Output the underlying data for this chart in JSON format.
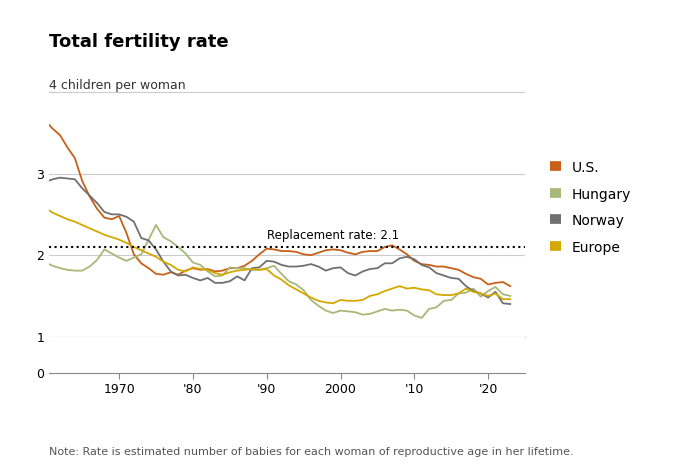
{
  "title": "Total fertility rate",
  "ylabel": "4 children per woman",
  "note": "Note: Rate is estimated number of babies for each woman of reproductive age in her lifetime.",
  "replacement_rate": 2.1,
  "replacement_label": "Replacement rate: 2.1",
  "plot_ylim": [
    1.0,
    4.1
  ],
  "plot_yticks": [
    1,
    2,
    3,
    4
  ],
  "plot_ytick_labels": [
    "1",
    "2",
    "3",
    "4 children per woman"
  ],
  "xlim": [
    1960.5,
    2025
  ],
  "xtick_years": [
    1970,
    1980,
    1990,
    2000,
    2010,
    2020
  ],
  "xtick_labels": [
    "1970",
    "'80",
    "'90",
    "2000",
    "'10",
    "'20"
  ],
  "series": {
    "US": {
      "color": "#c8601a",
      "label": "U.S.",
      "years": [
        1960,
        1961,
        1962,
        1963,
        1964,
        1965,
        1966,
        1967,
        1968,
        1969,
        1970,
        1971,
        1972,
        1973,
        1974,
        1975,
        1976,
        1977,
        1978,
        1979,
        1980,
        1981,
        1982,
        1983,
        1984,
        1985,
        1986,
        1987,
        1988,
        1989,
        1990,
        1991,
        1992,
        1993,
        1994,
        1995,
        1996,
        1997,
        1998,
        1999,
        2000,
        2001,
        2002,
        2003,
        2004,
        2005,
        2006,
        2007,
        2008,
        2009,
        2010,
        2011,
        2012,
        2013,
        2014,
        2015,
        2016,
        2017,
        2018,
        2019,
        2020,
        2021,
        2022,
        2023
      ],
      "values": [
        3.65,
        3.55,
        3.47,
        3.32,
        3.19,
        2.91,
        2.72,
        2.57,
        2.46,
        2.44,
        2.48,
        2.27,
        2.01,
        1.9,
        1.84,
        1.77,
        1.76,
        1.79,
        1.76,
        1.81,
        1.84,
        1.82,
        1.83,
        1.8,
        1.81,
        1.84,
        1.84,
        1.87,
        1.93,
        2.01,
        2.08,
        2.07,
        2.05,
        2.05,
        2.04,
        2.01,
        2.0,
        2.03,
        2.06,
        2.07,
        2.06,
        2.03,
        2.01,
        2.04,
        2.05,
        2.05,
        2.1,
        2.12,
        2.07,
        2.01,
        1.93,
        1.89,
        1.88,
        1.86,
        1.86,
        1.84,
        1.82,
        1.77,
        1.73,
        1.71,
        1.64,
        1.66,
        1.67,
        1.62
      ]
    },
    "Hungary": {
      "color": "#a8b878",
      "label": "Hungary",
      "years": [
        1960,
        1961,
        1962,
        1963,
        1964,
        1965,
        1966,
        1967,
        1968,
        1969,
        1970,
        1971,
        1972,
        1973,
        1974,
        1975,
        1976,
        1977,
        1978,
        1979,
        1980,
        1981,
        1982,
        1983,
        1984,
        1985,
        1986,
        1987,
        1988,
        1989,
        1990,
        1991,
        1992,
        1993,
        1994,
        1995,
        1996,
        1997,
        1998,
        1999,
        2000,
        2001,
        2002,
        2003,
        2004,
        2005,
        2006,
        2007,
        2008,
        2009,
        2010,
        2011,
        2012,
        2013,
        2014,
        2015,
        2016,
        2017,
        2018,
        2019,
        2020,
        2021,
        2022,
        2023
      ],
      "values": [
        1.91,
        1.87,
        1.84,
        1.82,
        1.81,
        1.81,
        1.86,
        1.94,
        2.07,
        2.02,
        1.97,
        1.93,
        1.97,
        2.01,
        2.19,
        2.37,
        2.22,
        2.17,
        2.1,
        2.02,
        1.91,
        1.88,
        1.8,
        1.74,
        1.75,
        1.85,
        1.84,
        1.84,
        1.82,
        1.82,
        1.84,
        1.87,
        1.77,
        1.68,
        1.64,
        1.57,
        1.45,
        1.38,
        1.32,
        1.29,
        1.32,
        1.31,
        1.3,
        1.27,
        1.28,
        1.31,
        1.34,
        1.32,
        1.33,
        1.32,
        1.26,
        1.23,
        1.34,
        1.36,
        1.44,
        1.45,
        1.53,
        1.54,
        1.59,
        1.49,
        1.56,
        1.61,
        1.52,
        1.5
      ]
    },
    "Norway": {
      "color": "#707070",
      "label": "Norway",
      "years": [
        1960,
        1961,
        1962,
        1963,
        1964,
        1965,
        1966,
        1967,
        1968,
        1969,
        1970,
        1971,
        1972,
        1973,
        1974,
        1975,
        1976,
        1977,
        1978,
        1979,
        1980,
        1981,
        1982,
        1983,
        1984,
        1985,
        1986,
        1987,
        1988,
        1989,
        1990,
        1991,
        1992,
        1993,
        1994,
        1995,
        1996,
        1997,
        1998,
        1999,
        2000,
        2001,
        2002,
        2003,
        2004,
        2005,
        2006,
        2007,
        2008,
        2009,
        2010,
        2011,
        2012,
        2013,
        2014,
        2015,
        2016,
        2017,
        2018,
        2019,
        2020,
        2021,
        2022,
        2023
      ],
      "values": [
        2.9,
        2.93,
        2.95,
        2.94,
        2.93,
        2.82,
        2.73,
        2.64,
        2.53,
        2.5,
        2.5,
        2.47,
        2.41,
        2.21,
        2.18,
        2.07,
        1.92,
        1.8,
        1.75,
        1.76,
        1.72,
        1.69,
        1.72,
        1.66,
        1.66,
        1.68,
        1.74,
        1.69,
        1.84,
        1.85,
        1.93,
        1.92,
        1.88,
        1.86,
        1.86,
        1.87,
        1.89,
        1.86,
        1.81,
        1.84,
        1.85,
        1.78,
        1.75,
        1.8,
        1.83,
        1.84,
        1.9,
        1.9,
        1.96,
        1.98,
        1.95,
        1.88,
        1.85,
        1.78,
        1.75,
        1.72,
        1.71,
        1.62,
        1.56,
        1.53,
        1.48,
        1.55,
        1.41,
        1.4
      ]
    },
    "Europe": {
      "color": "#d4a800",
      "label": "Europe",
      "years": [
        1960,
        1961,
        1962,
        1963,
        1964,
        1965,
        1966,
        1967,
        1968,
        1969,
        1970,
        1971,
        1972,
        1973,
        1974,
        1975,
        1976,
        1977,
        1978,
        1979,
        1980,
        1981,
        1982,
        1983,
        1984,
        1985,
        1986,
        1987,
        1988,
        1989,
        1990,
        1991,
        1992,
        1993,
        1994,
        1995,
        1996,
        1997,
        1998,
        1999,
        2000,
        2001,
        2002,
        2003,
        2004,
        2005,
        2006,
        2007,
        2008,
        2009,
        2010,
        2011,
        2012,
        2013,
        2014,
        2015,
        2016,
        2017,
        2018,
        2019,
        2020,
        2021,
        2022,
        2023
      ],
      "values": [
        2.58,
        2.52,
        2.48,
        2.44,
        2.41,
        2.37,
        2.33,
        2.29,
        2.25,
        2.22,
        2.19,
        2.15,
        2.1,
        2.06,
        2.02,
        1.98,
        1.92,
        1.88,
        1.82,
        1.8,
        1.85,
        1.83,
        1.82,
        1.78,
        1.76,
        1.79,
        1.81,
        1.82,
        1.83,
        1.82,
        1.83,
        1.75,
        1.7,
        1.63,
        1.58,
        1.53,
        1.48,
        1.44,
        1.42,
        1.41,
        1.45,
        1.44,
        1.44,
        1.45,
        1.5,
        1.52,
        1.56,
        1.59,
        1.62,
        1.59,
        1.6,
        1.58,
        1.57,
        1.52,
        1.51,
        1.51,
        1.53,
        1.59,
        1.55,
        1.53,
        1.5,
        1.53,
        1.46,
        1.46
      ]
    }
  },
  "background_color": "#ffffff",
  "grid_color": "#cccccc",
  "title_fontsize": 13,
  "tick_fontsize": 9,
  "note_fontsize": 8,
  "legend_fontsize": 10
}
